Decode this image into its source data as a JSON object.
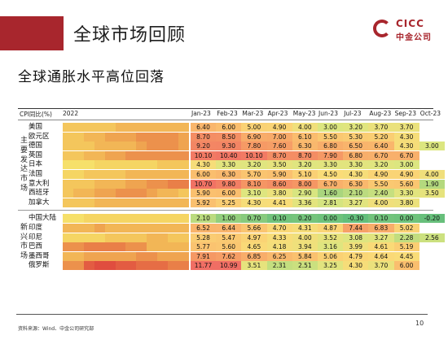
{
  "header": {
    "title": "全球市场回顾"
  },
  "logo": {
    "en": "CICC",
    "cn": "中金公司"
  },
  "subtitle": "全球通胀水平高位回落",
  "table": {
    "corner_label": "CPI同比(%)",
    "year_label": "2022",
    "months": [
      "Jan-23",
      "Feb-23",
      "Mar-23",
      "Apr-23",
      "May-23",
      "Jun-23",
      "Jul-23",
      "Aug-23",
      "Sep-23",
      "Oct-23"
    ],
    "groups": [
      {
        "label": "主要发达市场",
        "rows": [
          {
            "name": "美国",
            "hist": [
              4,
              4,
              4,
              5,
              5,
              6,
              6,
              6,
              7,
              7,
              7,
              6
            ],
            "values": [
              "6.40",
              "6.00",
              "5.00",
              "4.90",
              "4.00",
              "3.00",
              "3.20",
              "3.70",
              "3.70",
              ""
            ]
          },
          {
            "name": "欧元区",
            "hist": [
              5,
              5,
              6,
              7,
              8,
              8,
              8,
              9,
              9,
              9,
              9,
              8
            ],
            "values": [
              "8.70",
              "8.50",
              "6.90",
              "7.00",
              "6.10",
              "5.50",
              "5.30",
              "5.20",
              "4.30",
              ""
            ]
          },
          {
            "name": "德国",
            "hist": [
              4,
              4,
              5,
              6,
              7,
              7,
              7,
              8,
              9,
              9,
              9,
              8
            ],
            "values": [
              "9.20",
              "9.30",
              "7.80",
              "7.60",
              "6.30",
              "6.80",
              "6.50",
              "6.40",
              "4.30",
              "3.00"
            ]
          },
          {
            "name": "英国",
            "hist": [
              5,
              5,
              6,
              7,
              8,
              8,
              9,
              9,
              9,
              10,
              9,
              9
            ],
            "values": [
              "10.10",
              "10.40",
              "10.10",
              "8.70",
              "8.70",
              "7.90",
              "6.80",
              "6.70",
              "6.70",
              ""
            ]
          },
          {
            "name": "日本",
            "hist": [
              1,
              1,
              1,
              2,
              2,
              2,
              3,
              3,
              3,
              4,
              4,
              4
            ],
            "values": [
              "4.30",
              "3.30",
              "3.20",
              "3.50",
              "3.20",
              "3.30",
              "3.30",
              "3.20",
              "3.00",
              ""
            ]
          },
          {
            "name": "法国",
            "hist": [
              3,
              3,
              4,
              4,
              5,
              5,
              6,
              6,
              6,
              6,
              6,
              6
            ],
            "values": [
              "6.00",
              "6.30",
              "5.70",
              "5.90",
              "5.10",
              "4.50",
              "4.30",
              "4.90",
              "4.90",
              "4.00"
            ]
          },
          {
            "name": "意大利",
            "hist": [
              4,
              5,
              5,
              6,
              6,
              7,
              8,
              8,
              9,
              10,
              11,
              11
            ],
            "values": [
              "10.70",
              "9.80",
              "8.10",
              "8.60",
              "8.00",
              "6.70",
              "6.30",
              "5.50",
              "5.60",
              "1.90"
            ]
          },
          {
            "name": "西班牙",
            "hist": [
              5,
              6,
              7,
              8,
              8,
              9,
              10,
              9,
              8,
              7,
              6,
              5
            ],
            "values": [
              "5.90",
              "6.00",
              "3.10",
              "3.80",
              "2.90",
              "1.60",
              "2.10",
              "2.40",
              "3.30",
              "3.50"
            ]
          },
          {
            "name": "加拿大",
            "hist": [
              4,
              5,
              5,
              6,
              7,
              7,
              7,
              6,
              6,
              6,
              6,
              6
            ],
            "values": [
              "5.92",
              "5.25",
              "4.30",
              "4.41",
              "3.36",
              "2.81",
              "3.27",
              "4.00",
              "3.80",
              ""
            ]
          }
        ]
      },
      {
        "label": "新兴市场",
        "rows": [
          {
            "name": "中国大陆",
            "hist": [
              1,
              1,
              2,
              2,
              2,
              2,
              3,
              3,
              3,
              2,
              2,
              2
            ],
            "values": [
              "2.10",
              "1.00",
              "0.70",
              "0.10",
              "0.20",
              "0.00",
              "-0.30",
              "0.10",
              "0.00",
              "-0.20"
            ]
          },
          {
            "name": "印度",
            "hist": [
              6,
              6,
              7,
              8,
              7,
              7,
              7,
              7,
              7,
              7,
              6,
              6
            ],
            "values": [
              "6.52",
              "6.44",
              "5.66",
              "4.70",
              "4.31",
              "4.87",
              "7.44",
              "6.83",
              "5.02",
              ""
            ]
          },
          {
            "name": "印尼",
            "hist": [
              2,
              2,
              2,
              3,
              4,
              4,
              5,
              5,
              6,
              6,
              5,
              5
            ],
            "values": [
              "5.28",
              "5.47",
              "4.97",
              "4.33",
              "4.00",
              "3.52",
              "3.08",
              "3.27",
              "2.28",
              "2.56"
            ]
          },
          {
            "name": "巴西",
            "hist": [
              10,
              10,
              11,
              12,
              12,
              12,
              10,
              9,
              7,
              6,
              6,
              6
            ],
            "values": [
              "5.77",
              "5.60",
              "4.65",
              "4.18",
              "3.94",
              "3.16",
              "3.99",
              "4.61",
              "5.19",
              ""
            ]
          },
          {
            "name": "墨西哥",
            "hist": [
              7,
              7,
              8,
              8,
              8,
              8,
              8,
              9,
              9,
              8,
              8,
              8
            ],
            "values": [
              "7.91",
              "7.62",
              "6.85",
              "6.25",
              "5.84",
              "5.06",
              "4.79",
              "4.64",
              "4.45",
              ""
            ]
          },
          {
            "name": "俄罗斯",
            "hist": [
              9,
              9,
              16,
              17,
              17,
              16,
              15,
              14,
              14,
              13,
              12,
              12
            ],
            "values": [
              "11.77",
              "10.99",
              "3.51",
              "2.31",
              "2.51",
              "3.25",
              "4.30",
              "3.70",
              "6.00",
              ""
            ]
          }
        ]
      }
    ]
  },
  "footer": {
    "source": "资料来源：Wind、中金公司研究部",
    "page": "10"
  }
}
